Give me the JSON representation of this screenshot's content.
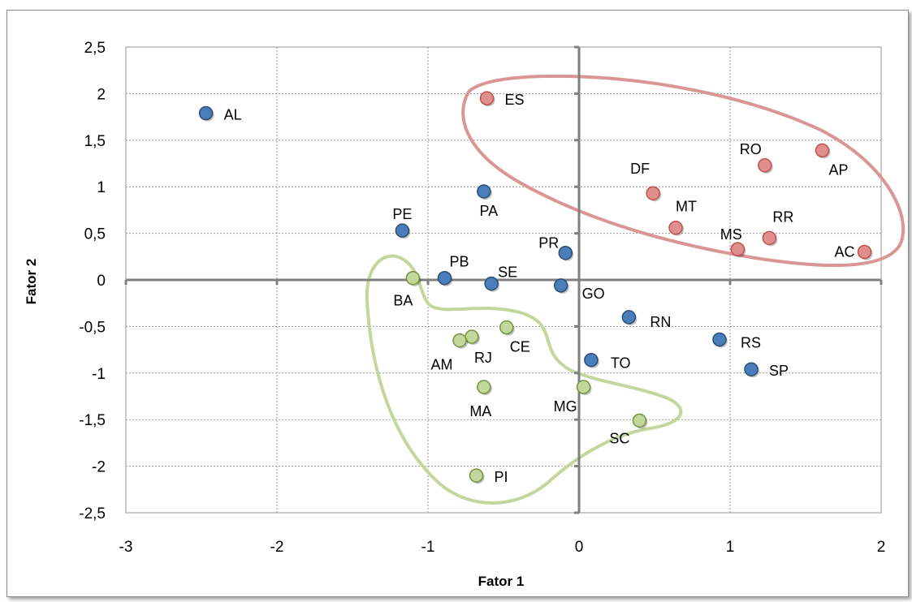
{
  "chart_data": {
    "type": "scatter",
    "xlabel": "Fator 1",
    "ylabel": "Fator 2",
    "xlim": [
      -3,
      2
    ],
    "ylim": [
      -2.5,
      2.5
    ],
    "x_ticks": [
      "-3",
      "-2",
      "-1",
      "0",
      "1",
      "2"
    ],
    "y_ticks": [
      "2,5",
      "2",
      "1,5",
      "1",
      "0,5",
      "0",
      "-0,5",
      "-1",
      "-1,5",
      "-2",
      "-2,5"
    ],
    "grid": true,
    "legend": "none",
    "colors": {
      "blue": "#4a7ebb",
      "red": "#e08f8f",
      "green": "#c3d69b",
      "red_outline": "#d99694",
      "green_outline": "#c3d69b"
    },
    "groups": [
      {
        "color": "blue",
        "points": [
          {
            "label": "AL",
            "x": -2.47,
            "y": 1.79
          },
          {
            "label": "PE",
            "x": -1.17,
            "y": 0.53
          },
          {
            "label": "PA",
            "x": -0.63,
            "y": 0.95
          },
          {
            "label": "PB",
            "x": -0.89,
            "y": 0.02
          },
          {
            "label": "SE",
            "x": -0.58,
            "y": -0.04
          },
          {
            "label": "PR",
            "x": -0.09,
            "y": 0.29
          },
          {
            "label": "GO",
            "x": -0.12,
            "y": -0.06
          },
          {
            "label": "RN",
            "x": 0.33,
            "y": -0.4
          },
          {
            "label": "RS",
            "x": 0.93,
            "y": -0.64
          },
          {
            "label": "SP",
            "x": 1.14,
            "y": -0.96
          },
          {
            "label": "TO",
            "x": 0.08,
            "y": -0.86
          }
        ]
      },
      {
        "color": "red",
        "points": [
          {
            "label": "ES",
            "x": -0.61,
            "y": 1.95
          },
          {
            "label": "DF",
            "x": 0.49,
            "y": 0.93
          },
          {
            "label": "MT",
            "x": 0.64,
            "y": 0.56
          },
          {
            "label": "RO",
            "x": 1.23,
            "y": 1.23
          },
          {
            "label": "AP",
            "x": 1.61,
            "y": 1.39
          },
          {
            "label": "RR",
            "x": 1.26,
            "y": 0.45
          },
          {
            "label": "MS",
            "x": 1.05,
            "y": 0.33
          },
          {
            "label": "AC",
            "x": 1.89,
            "y": 0.3
          }
        ]
      },
      {
        "color": "green",
        "points": [
          {
            "label": "BA",
            "x": -1.1,
            "y": 0.02
          },
          {
            "label": "CE",
            "x": -0.48,
            "y": -0.51
          },
          {
            "label": "RJ",
            "x": -0.71,
            "y": -0.61
          },
          {
            "label": "AM",
            "x": -0.79,
            "y": -0.65
          },
          {
            "label": "MA",
            "x": -0.63,
            "y": -1.15
          },
          {
            "label": "MG",
            "x": 0.03,
            "y": -1.15
          },
          {
            "label": "SC",
            "x": 0.4,
            "y": -1.51
          },
          {
            "label": "PI",
            "x": -0.68,
            "y": -2.1
          }
        ]
      }
    ]
  }
}
